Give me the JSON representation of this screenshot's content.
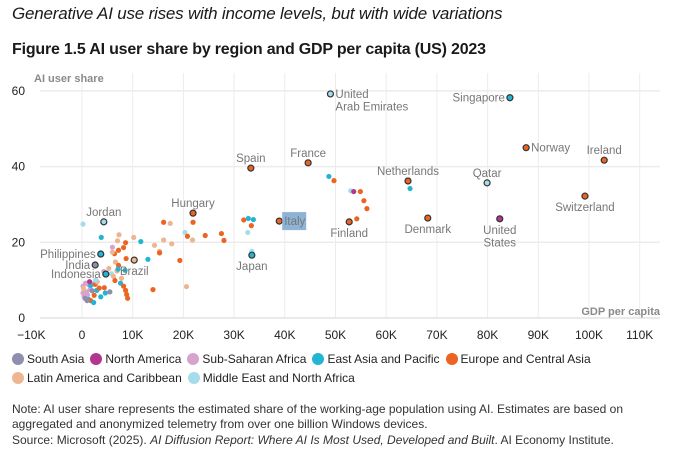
{
  "headline": "Generative AI use rises with income levels, but with wide variations",
  "figure_title": "Figure 1.5 AI user share by region and GDP per capita (US) 2023",
  "legend": [
    {
      "key": "south_asia",
      "label": "South Asia",
      "color": "#8e8fae"
    },
    {
      "key": "north_america",
      "label": "North America",
      "color": "#b2368f"
    },
    {
      "key": "ssa",
      "label": "Sub-Saharan Africa",
      "color": "#d6a3cf"
    },
    {
      "key": "eap",
      "label": "East Asia and Pacific",
      "color": "#22b5d3"
    },
    {
      "key": "eca",
      "label": "Europe and Central Asia",
      "color": "#ec6422"
    },
    {
      "key": "lac",
      "label": "Latin America and Caribbean",
      "color": "#eeb592"
    },
    {
      "key": "mena",
      "label": "Middle East and North Africa",
      "color": "#a5dcec"
    }
  ],
  "note": "Note: AI user share represents the estimated share of the working-age population using AI. Estimates are based on aggregated and anonymized telemetry from over one billion Windows devices.",
  "source": {
    "prefix": "Source: Microsoft (2025). ",
    "title": "AI Diffusion Report: Where AI Is Most Used, Developed and Built",
    "suffix": ". AI Economy Institute."
  },
  "chart_data": {
    "type": "scatter",
    "title": "Figure 1.5 AI user share by region and GDP per capita (US) 2023",
    "xlabel": "GDP per capita",
    "ylabel": "AI user share",
    "xlim": [
      -10000,
      113000
    ],
    "ylim": [
      0,
      62
    ],
    "xticks": [
      -10000,
      0,
      10000,
      20000,
      30000,
      40000,
      50000,
      60000,
      70000,
      80000,
      90000,
      100000,
      110000
    ],
    "xtick_labels": [
      "−10K",
      "0",
      "10K",
      "20K",
      "30K",
      "40K",
      "50K",
      "60K",
      "70K",
      "80K",
      "90K",
      "100K",
      "110K"
    ],
    "yticks": [
      0,
      20,
      40,
      60
    ],
    "ytick_labels": [
      "0",
      "20",
      "40",
      "60"
    ],
    "grid": true,
    "legend_position": "bottom",
    "labeled_points": [
      {
        "name": "United Arab Emirates",
        "label_lines": [
          "United",
          "Arab Emirates"
        ],
        "region": "mena",
        "x": 49000,
        "y": 59.2,
        "anchor": "right"
      },
      {
        "name": "Singapore",
        "label_lines": [
          "Singapore"
        ],
        "region": "eap",
        "x": 84400,
        "y": 58.2,
        "anchor": "left"
      },
      {
        "name": "Norway",
        "label_lines": [
          "Norway"
        ],
        "region": "eca",
        "x": 87600,
        "y": 45.0,
        "anchor": "right"
      },
      {
        "name": "Ireland",
        "label_lines": [
          "Ireland"
        ],
        "region": "eca",
        "x": 103000,
        "y": 41.7,
        "anchor": "above"
      },
      {
        "name": "France",
        "label_lines": [
          "France"
        ],
        "region": "eca",
        "x": 44600,
        "y": 41.0,
        "anchor": "above"
      },
      {
        "name": "Spain",
        "label_lines": [
          "Spain"
        ],
        "region": "eca",
        "x": 33300,
        "y": 39.6,
        "anchor": "above"
      },
      {
        "name": "Netherlands",
        "label_lines": [
          "Netherlands"
        ],
        "region": "eca",
        "x": 64300,
        "y": 36.2,
        "anchor": "above"
      },
      {
        "name": "Qatar",
        "label_lines": [
          "Qatar"
        ],
        "region": "mena",
        "x": 79900,
        "y": 35.7,
        "anchor": "above"
      },
      {
        "name": "Switzerland",
        "label_lines": [
          "Switzerland"
        ],
        "region": "eca",
        "x": 99200,
        "y": 32.2,
        "anchor": "below"
      },
      {
        "name": "Hungary",
        "label_lines": [
          "Hungary"
        ],
        "region": "eca",
        "x": 21900,
        "y": 27.7,
        "anchor": "above"
      },
      {
        "name": "Denmark",
        "label_lines": [
          "Denmark"
        ],
        "region": "eca",
        "x": 68200,
        "y": 26.4,
        "anchor": "below"
      },
      {
        "name": "United States",
        "label_lines": [
          "United",
          "States"
        ],
        "region": "north_america",
        "x": 82400,
        "y": 26.2,
        "anchor": "below"
      },
      {
        "name": "Italy",
        "label_lines": [
          "Italy"
        ],
        "region": "eca",
        "x": 38900,
        "y": 25.6,
        "anchor": "right",
        "highlight": true
      },
      {
        "name": "Finland",
        "label_lines": [
          "Finland"
        ],
        "region": "eca",
        "x": 52700,
        "y": 25.4,
        "anchor": "below"
      },
      {
        "name": "Jordan",
        "label_lines": [
          "Jordan"
        ],
        "region": "mena",
        "x": 4300,
        "y": 25.4,
        "anchor": "above"
      },
      {
        "name": "Philippines",
        "label_lines": [
          "Philippines"
        ],
        "region": "eap",
        "x": 3700,
        "y": 16.9,
        "anchor": "left"
      },
      {
        "name": "Japan",
        "label_lines": [
          "Japan"
        ],
        "region": "eap",
        "x": 33500,
        "y": 16.6,
        "anchor": "below"
      },
      {
        "name": "Brazil",
        "label_lines": [
          "Brazil"
        ],
        "region": "lac",
        "x": 10300,
        "y": 15.3,
        "anchor": "below"
      },
      {
        "name": "India",
        "label_lines": [
          "India"
        ],
        "region": "south_asia",
        "x": 2600,
        "y": 14.0,
        "anchor": "left"
      },
      {
        "name": "Indonesia",
        "label_lines": [
          "Indonesia"
        ],
        "region": "eap",
        "x": 4700,
        "y": 11.6,
        "anchor": "left"
      }
    ],
    "other_points": [
      {
        "region": "mena",
        "x": 53000,
        "y": 33.6
      },
      {
        "region": "north_america",
        "x": 53600,
        "y": 33.4
      },
      {
        "region": "eca",
        "x": 54900,
        "y": 33.4
      },
      {
        "region": "eap",
        "x": 48700,
        "y": 37.4
      },
      {
        "region": "eca",
        "x": 49700,
        "y": 36.3
      },
      {
        "region": "eca",
        "x": 55600,
        "y": 31.0
      },
      {
        "region": "eca",
        "x": 56200,
        "y": 28.9
      },
      {
        "region": "eca",
        "x": 54200,
        "y": 26.2
      },
      {
        "region": "eap",
        "x": 64700,
        "y": 34.2
      },
      {
        "region": "eca",
        "x": 31900,
        "y": 25.9
      },
      {
        "region": "eap",
        "x": 32800,
        "y": 26.3
      },
      {
        "region": "eap",
        "x": 33800,
        "y": 26.0
      },
      {
        "region": "eca",
        "x": 33400,
        "y": 24.4
      },
      {
        "region": "mena",
        "x": 32700,
        "y": 22.6
      },
      {
        "region": "mena",
        "x": 33500,
        "y": 17.6
      },
      {
        "region": "eca",
        "x": 21900,
        "y": 25.3
      },
      {
        "region": "eca",
        "x": 16100,
        "y": 25.3
      },
      {
        "region": "lac",
        "x": 17400,
        "y": 25.0
      },
      {
        "region": "mena",
        "x": 20300,
        "y": 22.6
      },
      {
        "region": "eca",
        "x": 20800,
        "y": 21.6
      },
      {
        "region": "lac",
        "x": 21800,
        "y": 20.6
      },
      {
        "region": "eca",
        "x": 24300,
        "y": 21.8
      },
      {
        "region": "eca",
        "x": 27500,
        "y": 22.3
      },
      {
        "region": "eca",
        "x": 28000,
        "y": 20.5
      },
      {
        "region": "eca",
        "x": 19300,
        "y": 15.2
      },
      {
        "region": "lac",
        "x": 17700,
        "y": 19.6
      },
      {
        "region": "lac",
        "x": 14300,
        "y": 19.2
      },
      {
        "region": "lac",
        "x": 15300,
        "y": 17.6
      },
      {
        "region": "lac",
        "x": 16100,
        "y": 20.6
      },
      {
        "region": "lac",
        "x": 20600,
        "y": 8.3
      },
      {
        "region": "eca",
        "x": 14000,
        "y": 7.5
      },
      {
        "region": "eca",
        "x": 15300,
        "y": 17.2
      },
      {
        "region": "eap",
        "x": 13000,
        "y": 15.5
      },
      {
        "region": "eap",
        "x": 11600,
        "y": 20.2
      },
      {
        "region": "mena",
        "x": 200,
        "y": 24.8
      },
      {
        "region": "eap",
        "x": 3800,
        "y": 21.3
      },
      {
        "region": "lac",
        "x": 7300,
        "y": 22.0
      },
      {
        "region": "lac",
        "x": 7000,
        "y": 20.4
      },
      {
        "region": "lac",
        "x": 10200,
        "y": 21.3
      },
      {
        "region": "ssa",
        "x": 6000,
        "y": 18.7
      },
      {
        "region": "eca",
        "x": 8600,
        "y": 19.9
      },
      {
        "region": "eca",
        "x": 8200,
        "y": 18.6
      },
      {
        "region": "eca",
        "x": 6400,
        "y": 17.0
      },
      {
        "region": "eca",
        "x": 7200,
        "y": 17.9
      },
      {
        "region": "lac",
        "x": 6000,
        "y": 17.4
      },
      {
        "region": "eca",
        "x": 8700,
        "y": 15.7
      },
      {
        "region": "lac",
        "x": 6600,
        "y": 14.8
      },
      {
        "region": "eca",
        "x": 7200,
        "y": 13.9
      },
      {
        "region": "eap",
        "x": 8500,
        "y": 12.6
      },
      {
        "region": "lac",
        "x": 5300,
        "y": 13.1
      },
      {
        "region": "lac",
        "x": 6900,
        "y": 12.4
      },
      {
        "region": "mena",
        "x": 5800,
        "y": 11.7
      },
      {
        "region": "ssa",
        "x": 4300,
        "y": 12.3
      },
      {
        "region": "eap",
        "x": 7100,
        "y": 12.9
      },
      {
        "region": "lac",
        "x": 6200,
        "y": 11.0
      },
      {
        "region": "eca",
        "x": 6500,
        "y": 9.9
      },
      {
        "region": "eap",
        "x": 7600,
        "y": 9.2
      },
      {
        "region": "eca",
        "x": 8200,
        "y": 8.4
      },
      {
        "region": "eca",
        "x": 8600,
        "y": 7.3
      },
      {
        "region": "eca",
        "x": 8800,
        "y": 6.2
      },
      {
        "region": "eca",
        "x": 9000,
        "y": 5.2
      },
      {
        "region": "lac",
        "x": 7800,
        "y": 10.5
      },
      {
        "region": "ssa",
        "x": 200,
        "y": 8.4
      },
      {
        "region": "ssa",
        "x": 700,
        "y": 9.2
      },
      {
        "region": "ssa",
        "x": 1300,
        "y": 8.8
      },
      {
        "region": "ssa",
        "x": 2100,
        "y": 9.0
      },
      {
        "region": "ssa",
        "x": 200,
        "y": 6.6
      },
      {
        "region": "ssa",
        "x": 900,
        "y": 6.9
      },
      {
        "region": "ssa",
        "x": 1600,
        "y": 7.6
      },
      {
        "region": "ssa",
        "x": 400,
        "y": 5.8
      },
      {
        "region": "ssa",
        "x": 1100,
        "y": 6.1
      },
      {
        "region": "eap",
        "x": 1700,
        "y": 8.6
      },
      {
        "region": "eap",
        "x": 2900,
        "y": 7.3
      },
      {
        "region": "eap",
        "x": 4600,
        "y": 6.6
      },
      {
        "region": "eap",
        "x": 3700,
        "y": 5.6
      },
      {
        "region": "eap",
        "x": 1300,
        "y": 4.9
      },
      {
        "region": "eca",
        "x": 2600,
        "y": 8.9
      },
      {
        "region": "eca",
        "x": 3400,
        "y": 7.9
      },
      {
        "region": "eca",
        "x": 2400,
        "y": 6.0
      },
      {
        "region": "eca",
        "x": 1700,
        "y": 4.6
      },
      {
        "region": "eca",
        "x": 4400,
        "y": 8.0
      },
      {
        "region": "lac",
        "x": 300,
        "y": 7.8
      },
      {
        "region": "lac",
        "x": 3000,
        "y": 9.6
      },
      {
        "region": "south_asia",
        "x": 600,
        "y": 5.2
      },
      {
        "region": "south_asia",
        "x": 2000,
        "y": 7.2
      },
      {
        "region": "south_asia",
        "x": 5500,
        "y": 6.9
      },
      {
        "region": "south_asia",
        "x": 1000,
        "y": 4.6
      },
      {
        "region": "eap",
        "x": 2300,
        "y": 4.1
      },
      {
        "region": "mena",
        "x": 2700,
        "y": 10.0
      },
      {
        "region": "north_america",
        "x": 1500,
        "y": 9.6
      }
    ]
  }
}
